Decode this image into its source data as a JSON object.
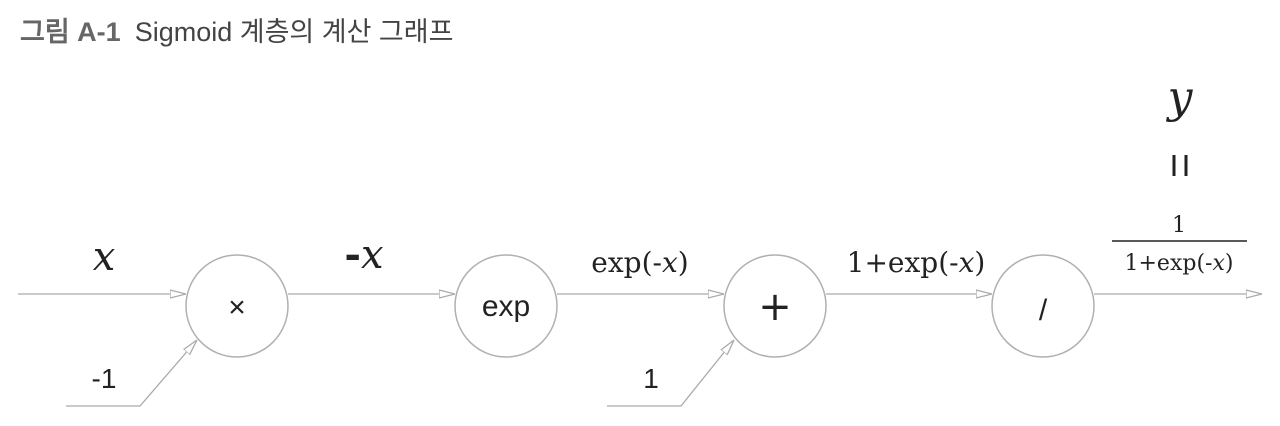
{
  "caption": {
    "figure_label": "그림 A-1",
    "title": "Sigmoid 계층의 계산 그래프"
  },
  "nodes": {
    "multiply": "×",
    "exp": "exp",
    "add": "+",
    "divide": "/"
  },
  "edge_labels": {
    "input": "x",
    "neg_sign": "-",
    "neg_var": "x",
    "exp_out_a": "exp(-",
    "exp_out_var": "x",
    "exp_out_b": ")",
    "sum_out_a": "1+exp(-",
    "sum_out_var": "x",
    "sum_out_b": ")"
  },
  "side_inputs": {
    "neg_one": "-1",
    "one": "1"
  },
  "output": {
    "y": "y",
    "equals": "=",
    "numerator": "1",
    "denom_a": "1+exp(-",
    "denom_var": "x",
    "denom_b": ")"
  }
}
